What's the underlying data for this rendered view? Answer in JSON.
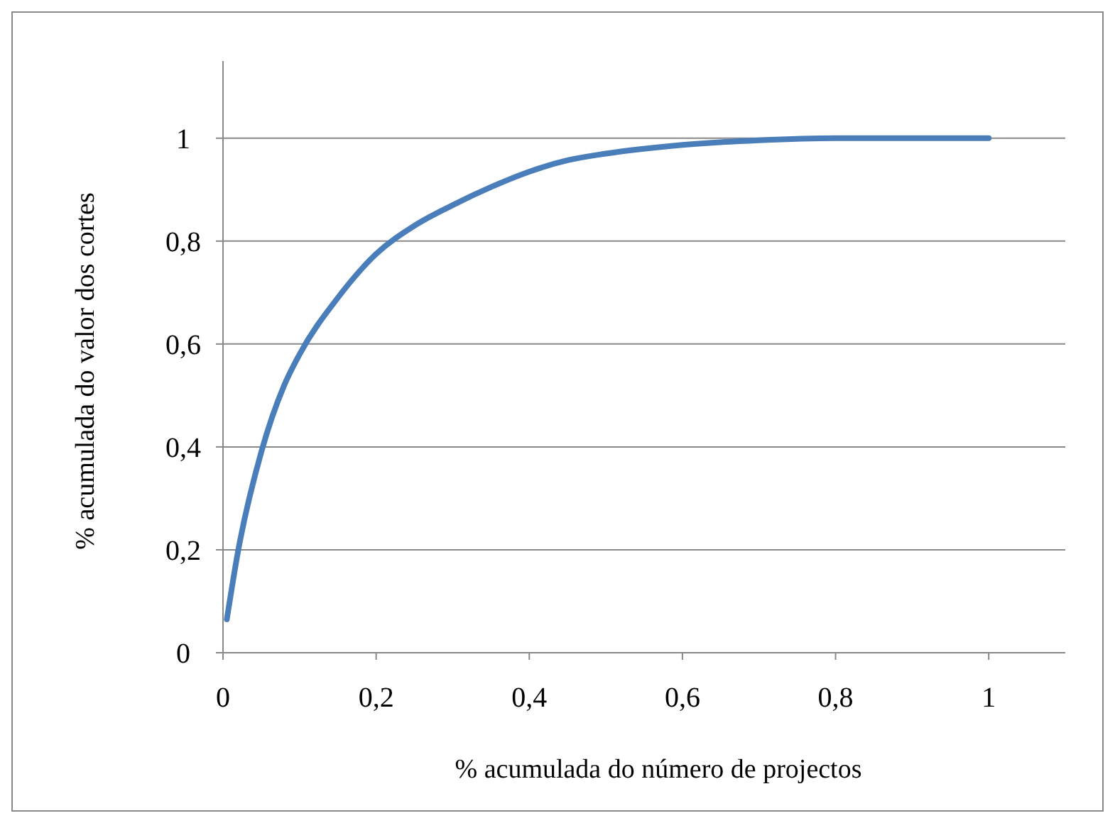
{
  "chart_data": {
    "type": "line",
    "xlabel": "% acumulada do número de projectos",
    "ylabel": "% acumulada do valor dos cortes",
    "x": [
      0.005,
      0.02,
      0.05,
      0.08,
      0.1,
      0.15,
      0.2,
      0.25,
      0.3,
      0.35,
      0.4,
      0.45,
      0.5,
      0.6,
      0.7,
      0.8,
      0.9,
      1
    ],
    "series": [
      {
        "color": "#4a7ebb",
        "values": [
          0.065,
          0.2,
          0.39,
          0.52,
          0.58,
          0.69,
          0.775,
          0.83,
          0.87,
          0.905,
          0.935,
          0.957,
          0.97,
          0.987,
          0.996,
          1,
          1,
          1
        ]
      }
    ],
    "xlim": [
      0,
      1.1
    ],
    "ylim": [
      0,
      1.15
    ],
    "xticks": [
      0,
      {
        "value": 0.2,
        "label": "0,2"
      },
      {
        "value": 0.4,
        "label": "0,4"
      },
      {
        "value": 0.6,
        "label": "0,6"
      },
      {
        "value": 0.8,
        "label": "0,8"
      },
      1
    ],
    "yticks": [
      0,
      {
        "value": 0.2,
        "label": "0,2"
      },
      {
        "value": 0.4,
        "label": "0,4"
      },
      {
        "value": 0.6,
        "label": "0,6"
      },
      {
        "value": 0.8,
        "label": "0,8"
      },
      1
    ],
    "grid": "y",
    "marker": "none",
    "line_style": "solid"
  }
}
